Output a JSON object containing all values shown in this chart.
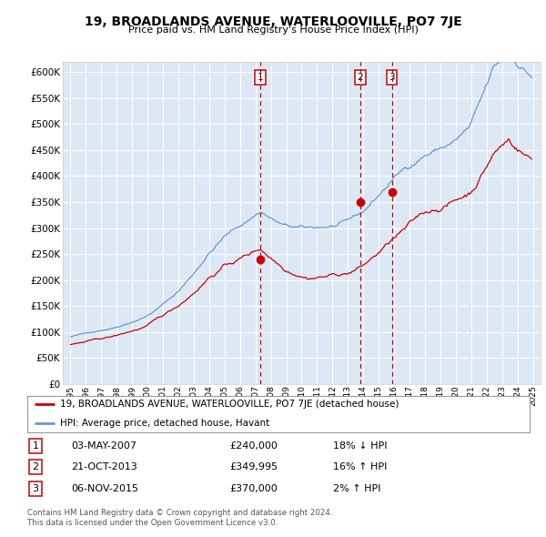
{
  "title": "19, BROADLANDS AVENUE, WATERLOOVILLE, PO7 7JE",
  "subtitle": "Price paid vs. HM Land Registry's House Price Index (HPI)",
  "legend_line1": "19, BROADLANDS AVENUE, WATERLOOVILLE, PO7 7JE (detached house)",
  "legend_line2": "HPI: Average price, detached house, Havant",
  "footer1": "Contains HM Land Registry data © Crown copyright and database right 2024.",
  "footer2": "This data is licensed under the Open Government Licence v3.0.",
  "sale_color": "#cc0000",
  "hpi_color": "#6699cc",
  "plot_bg_color": "#dce9f5",
  "ylim": [
    0,
    620000
  ],
  "yticks": [
    0,
    50000,
    100000,
    150000,
    200000,
    250000,
    300000,
    350000,
    400000,
    450000,
    500000,
    550000,
    600000
  ],
  "xlim_start": 1994.5,
  "xlim_end": 2025.5,
  "transaction_dates": [
    "2007-05-03",
    "2013-10-21",
    "2015-11-06"
  ],
  "transaction_prices": [
    240000,
    349995,
    370000
  ],
  "transaction_labels": [
    "1",
    "2",
    "3"
  ],
  "transaction_table": [
    [
      "1",
      "03-MAY-2007",
      "£240,000",
      "18% ↓ HPI"
    ],
    [
      "2",
      "21-OCT-2013",
      "£349,995",
      "16% ↑ HPI"
    ],
    [
      "3",
      "06-NOV-2015",
      "£370,000",
      "2% ↑ HPI"
    ]
  ]
}
